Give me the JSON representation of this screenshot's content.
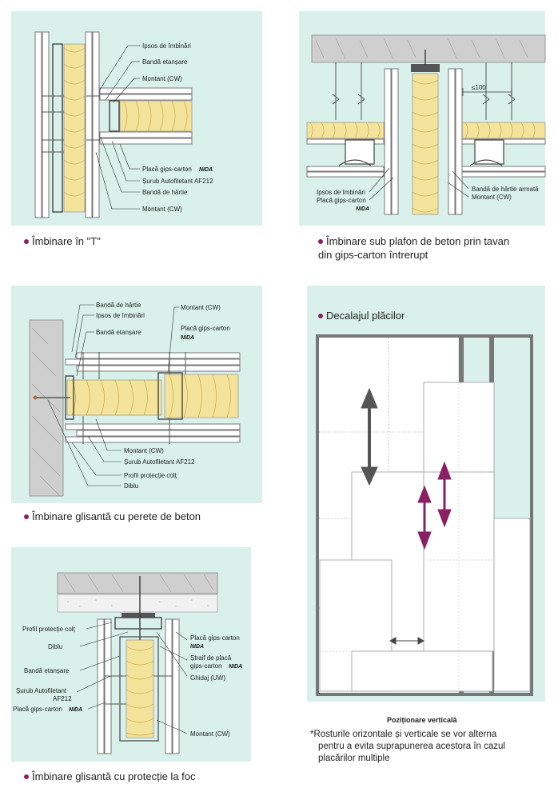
{
  "panels": {
    "t_joint": {
      "caption": "Îmbinare în \"T\"",
      "labels": [
        "Ipsos de îmbinări",
        "Bandă etanșare",
        "Montant (CW)",
        "Placă gips-carton",
        "Șurub Autofiletant AF212",
        "Bandă de hârtie",
        "Montant (CW)"
      ],
      "brand": "NIDA"
    },
    "ceiling_joint": {
      "caption_line1": "Îmbinare sub plafon de beton prin tavan",
      "caption_line2": "din gips-carton întrerupt",
      "dimension": "≤100",
      "labels": [
        "Ipsos de îmbinări",
        "Placă gips-carton",
        "Bandă de hârtie armată",
        "Montant (CW)"
      ],
      "brand": "NIDA"
    },
    "sliding_concrete": {
      "caption": "Îmbinare glisantă cu perete de beton",
      "labels": [
        "Bandă de hârtie",
        "Ipsos de îmbinări",
        "Bandă etanșare",
        "Montant (CW)",
        "Placă gips-carton",
        "Montant (CW)",
        "Șurub Autofiletant AF212",
        "Profil protecție colț",
        "Diblu"
      ],
      "brand": "NIDA"
    },
    "sliding_fire": {
      "caption": "Îmbinare glisantă cu protecție la foc",
      "labels_left": [
        "Profil protecție colț",
        "Diblu",
        "Bandă etanșare",
        "Șurub Autofiletant",
        "AF212",
        "Placă gips-carton"
      ],
      "labels_right": [
        "Placă gips-carton",
        "Ștraif de placă",
        "gips-carton",
        "Ghidaj (UW)",
        "Montant (CW)"
      ],
      "brand": "NIDA"
    },
    "offset": {
      "title": "Decalajul plăcilor",
      "subtitle": "Poziționare verticală",
      "note_line1": "*Rosturile orizontale și verticale se vor alterna",
      "note_line2": "pentru a evita suprapunerea acestora în cazul",
      "note_line3": "placărilor multiple"
    }
  },
  "colors": {
    "panel_bg": "#d9f1ea",
    "insulation": "#f4e39a",
    "accent": "#8b1f63",
    "arrow_gray": "#555555"
  }
}
